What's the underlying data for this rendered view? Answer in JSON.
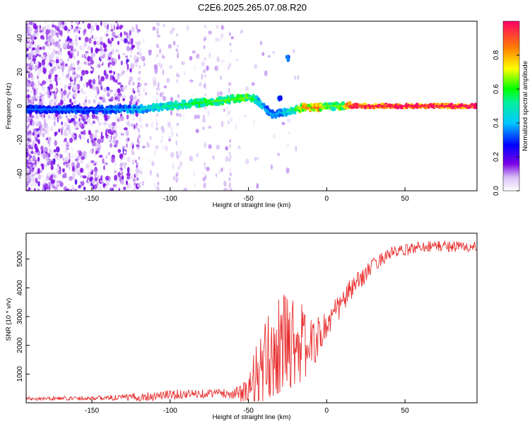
{
  "title": "C2E6.2025.265.07.08.R20",
  "chart_data": [
    {
      "type": "heatmap",
      "title": "C2E6.2025.265.07.08.R20",
      "xlabel": "Height of straight line (km)",
      "ylabel": "Frequency (Hz)",
      "xlim": [
        -192,
        96
      ],
      "ylim": [
        -50,
        50
      ],
      "x_ticks": [
        "-150",
        "-100",
        "-50",
        "0",
        "50"
      ],
      "y_ticks": [
        "-40",
        "-20",
        "0",
        "20",
        "40"
      ],
      "grid": false,
      "colorbar": {
        "label": "Normalized spectral amplitude",
        "range": [
          0,
          1
        ],
        "ticks": [
          "0.0",
          "0.2",
          "0.4",
          "0.6",
          "0.8"
        ]
      },
      "ridge": [
        {
          "x": -192,
          "f": -2,
          "amp": 0.3
        },
        {
          "x": -170,
          "f": -2,
          "amp": 0.32
        },
        {
          "x": -150,
          "f": -2,
          "amp": 0.3
        },
        {
          "x": -130,
          "f": -2,
          "amp": 0.35
        },
        {
          "x": -120,
          "f": -2,
          "amp": 0.42
        },
        {
          "x": -110,
          "f": -1,
          "amp": 0.45
        },
        {
          "x": -100,
          "f": 0,
          "amp": 0.5
        },
        {
          "x": -90,
          "f": 1,
          "amp": 0.52
        },
        {
          "x": -80,
          "f": 2,
          "amp": 0.56
        },
        {
          "x": -70,
          "f": 3,
          "amp": 0.6
        },
        {
          "x": -60,
          "f": 4,
          "amp": 0.58
        },
        {
          "x": -50,
          "f": 5,
          "amp": 0.62
        },
        {
          "x": -45,
          "f": 4,
          "amp": 0.5
        },
        {
          "x": -40,
          "f": -1,
          "amp": 0.38
        },
        {
          "x": -35,
          "f": -5,
          "amp": 0.35
        },
        {
          "x": -28,
          "f": -4,
          "amp": 0.4
        },
        {
          "x": -20,
          "f": -2,
          "amp": 0.55
        },
        {
          "x": -15,
          "f": -1,
          "amp": 0.78
        },
        {
          "x": -5,
          "f": -1,
          "amp": 0.82
        },
        {
          "x": 0,
          "f": 0,
          "amp": 0.6
        },
        {
          "x": 10,
          "f": 0,
          "amp": 0.62
        },
        {
          "x": 15,
          "f": 0,
          "amp": 0.9
        },
        {
          "x": 30,
          "f": 0,
          "amp": 0.95
        },
        {
          "x": 50,
          "f": 0,
          "amp": 0.97
        },
        {
          "x": 70,
          "f": 0,
          "amp": 0.97
        },
        {
          "x": 96,
          "f": 0,
          "amp": 0.96
        }
      ],
      "features": [
        {
          "x": -25,
          "f": 28,
          "amp": 0.4
        },
        {
          "x": -30,
          "f": 5,
          "amp": 0.35
        }
      ]
    },
    {
      "type": "line",
      "xlabel": "Height of straight line (km)",
      "ylabel": "SNR (10 * v/v)",
      "xlim": [
        -192,
        96
      ],
      "ylim": [
        0,
        5900
      ],
      "x_ticks": [
        "-150",
        "-100",
        "-50",
        "0",
        "50"
      ],
      "y_ticks": [
        "1000",
        "2000",
        "3000",
        "4000",
        "5000"
      ],
      "grid": false,
      "series": [
        {
          "name": "SNR",
          "color": "#e83030",
          "x": [
            -192,
            -180,
            -160,
            -140,
            -120,
            -110,
            -100,
            -90,
            -80,
            -70,
            -60,
            -55,
            -50,
            -45,
            -40,
            -35,
            -30,
            -25,
            -20,
            -15,
            -10,
            -5,
            0,
            5,
            10,
            15,
            20,
            25,
            30,
            40,
            50,
            60,
            70,
            80,
            96
          ],
          "y": [
            150,
            150,
            160,
            170,
            200,
            240,
            280,
            300,
            320,
            350,
            300,
            350,
            400,
            800,
            1200,
            1700,
            2000,
            2200,
            2200,
            2000,
            2000,
            2300,
            2700,
            3100,
            3500,
            3900,
            4200,
            4500,
            4800,
            5200,
            5300,
            5450,
            5450,
            5450,
            5400
          ],
          "noise": [
            70,
            70,
            70,
            80,
            150,
            170,
            170,
            160,
            150,
            150,
            160,
            300,
            700,
            1300,
            1500,
            1600,
            1700,
            1800,
            1600,
            1400,
            900,
            700,
            600,
            500,
            450,
            400,
            350,
            300,
            250,
            220,
            200,
            200,
            200,
            200,
            200
          ]
        }
      ]
    }
  ]
}
